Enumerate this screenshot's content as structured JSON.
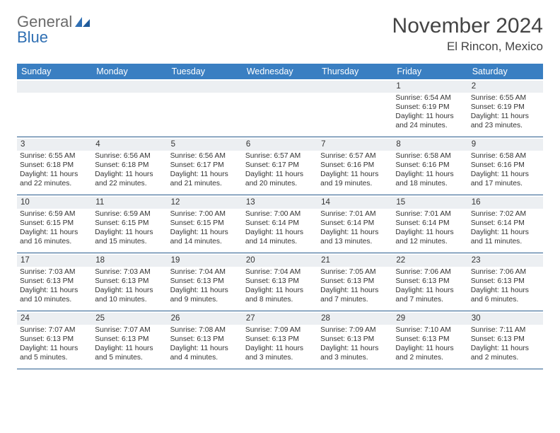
{
  "logo": {
    "text1": "General",
    "text2": "Blue"
  },
  "title": "November 2024",
  "location": "El Rincon, Mexico",
  "dow": [
    "Sunday",
    "Monday",
    "Tuesday",
    "Wednesday",
    "Thursday",
    "Friday",
    "Saturday"
  ],
  "colors": {
    "header_bg": "#3a7fc2",
    "header_text": "#ffffff",
    "band_bg": "#eceff2",
    "rule": "#2a5d8f",
    "text": "#333333",
    "logo_gray": "#6a6a6a",
    "logo_blue": "#2f6fb3"
  },
  "weeks": [
    [
      null,
      null,
      null,
      null,
      null,
      {
        "d": "1",
        "sr": "6:54 AM",
        "ss": "6:19 PM",
        "dl": "11 hours and 24 minutes."
      },
      {
        "d": "2",
        "sr": "6:55 AM",
        "ss": "6:19 PM",
        "dl": "11 hours and 23 minutes."
      }
    ],
    [
      {
        "d": "3",
        "sr": "6:55 AM",
        "ss": "6:18 PM",
        "dl": "11 hours and 22 minutes."
      },
      {
        "d": "4",
        "sr": "6:56 AM",
        "ss": "6:18 PM",
        "dl": "11 hours and 22 minutes."
      },
      {
        "d": "5",
        "sr": "6:56 AM",
        "ss": "6:17 PM",
        "dl": "11 hours and 21 minutes."
      },
      {
        "d": "6",
        "sr": "6:57 AM",
        "ss": "6:17 PM",
        "dl": "11 hours and 20 minutes."
      },
      {
        "d": "7",
        "sr": "6:57 AM",
        "ss": "6:16 PM",
        "dl": "11 hours and 19 minutes."
      },
      {
        "d": "8",
        "sr": "6:58 AM",
        "ss": "6:16 PM",
        "dl": "11 hours and 18 minutes."
      },
      {
        "d": "9",
        "sr": "6:58 AM",
        "ss": "6:16 PM",
        "dl": "11 hours and 17 minutes."
      }
    ],
    [
      {
        "d": "10",
        "sr": "6:59 AM",
        "ss": "6:15 PM",
        "dl": "11 hours and 16 minutes."
      },
      {
        "d": "11",
        "sr": "6:59 AM",
        "ss": "6:15 PM",
        "dl": "11 hours and 15 minutes."
      },
      {
        "d": "12",
        "sr": "7:00 AM",
        "ss": "6:15 PM",
        "dl": "11 hours and 14 minutes."
      },
      {
        "d": "13",
        "sr": "7:00 AM",
        "ss": "6:14 PM",
        "dl": "11 hours and 14 minutes."
      },
      {
        "d": "14",
        "sr": "7:01 AM",
        "ss": "6:14 PM",
        "dl": "11 hours and 13 minutes."
      },
      {
        "d": "15",
        "sr": "7:01 AM",
        "ss": "6:14 PM",
        "dl": "11 hours and 12 minutes."
      },
      {
        "d": "16",
        "sr": "7:02 AM",
        "ss": "6:14 PM",
        "dl": "11 hours and 11 minutes."
      }
    ],
    [
      {
        "d": "17",
        "sr": "7:03 AM",
        "ss": "6:13 PM",
        "dl": "11 hours and 10 minutes."
      },
      {
        "d": "18",
        "sr": "7:03 AM",
        "ss": "6:13 PM",
        "dl": "11 hours and 10 minutes."
      },
      {
        "d": "19",
        "sr": "7:04 AM",
        "ss": "6:13 PM",
        "dl": "11 hours and 9 minutes."
      },
      {
        "d": "20",
        "sr": "7:04 AM",
        "ss": "6:13 PM",
        "dl": "11 hours and 8 minutes."
      },
      {
        "d": "21",
        "sr": "7:05 AM",
        "ss": "6:13 PM",
        "dl": "11 hours and 7 minutes."
      },
      {
        "d": "22",
        "sr": "7:06 AM",
        "ss": "6:13 PM",
        "dl": "11 hours and 7 minutes."
      },
      {
        "d": "23",
        "sr": "7:06 AM",
        "ss": "6:13 PM",
        "dl": "11 hours and 6 minutes."
      }
    ],
    [
      {
        "d": "24",
        "sr": "7:07 AM",
        "ss": "6:13 PM",
        "dl": "11 hours and 5 minutes."
      },
      {
        "d": "25",
        "sr": "7:07 AM",
        "ss": "6:13 PM",
        "dl": "11 hours and 5 minutes."
      },
      {
        "d": "26",
        "sr": "7:08 AM",
        "ss": "6:13 PM",
        "dl": "11 hours and 4 minutes."
      },
      {
        "d": "27",
        "sr": "7:09 AM",
        "ss": "6:13 PM",
        "dl": "11 hours and 3 minutes."
      },
      {
        "d": "28",
        "sr": "7:09 AM",
        "ss": "6:13 PM",
        "dl": "11 hours and 3 minutes."
      },
      {
        "d": "29",
        "sr": "7:10 AM",
        "ss": "6:13 PM",
        "dl": "11 hours and 2 minutes."
      },
      {
        "d": "30",
        "sr": "7:11 AM",
        "ss": "6:13 PM",
        "dl": "11 hours and 2 minutes."
      }
    ]
  ],
  "labels": {
    "sunrise": "Sunrise: ",
    "sunset": "Sunset: ",
    "daylight": "Daylight: "
  }
}
